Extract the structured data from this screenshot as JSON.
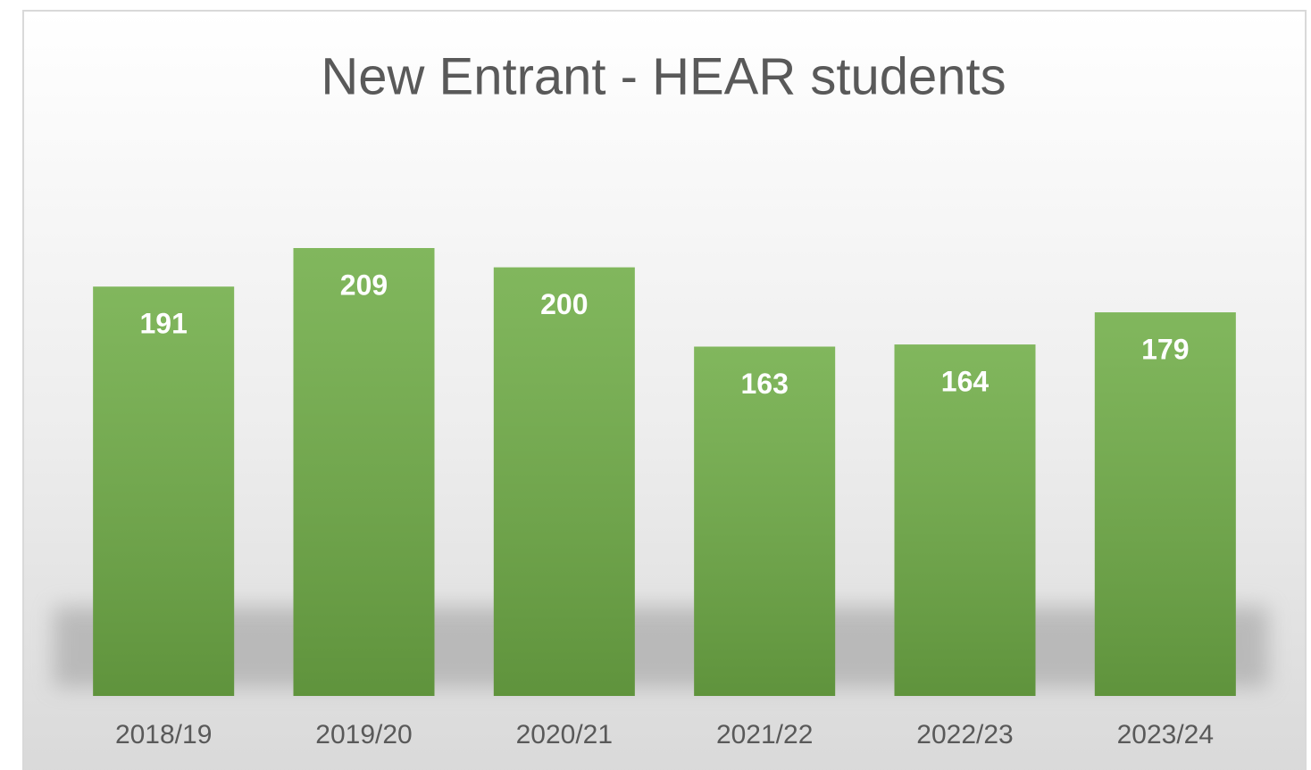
{
  "chart_data": {
    "type": "bar",
    "title": "New Entrant - HEAR students",
    "categories": [
      "2018/19",
      "2019/20",
      "2020/21",
      "2021/22",
      "2022/23",
      "2023/24"
    ],
    "values": [
      191,
      209,
      200,
      163,
      164,
      179
    ],
    "color": "#70ad47"
  }
}
